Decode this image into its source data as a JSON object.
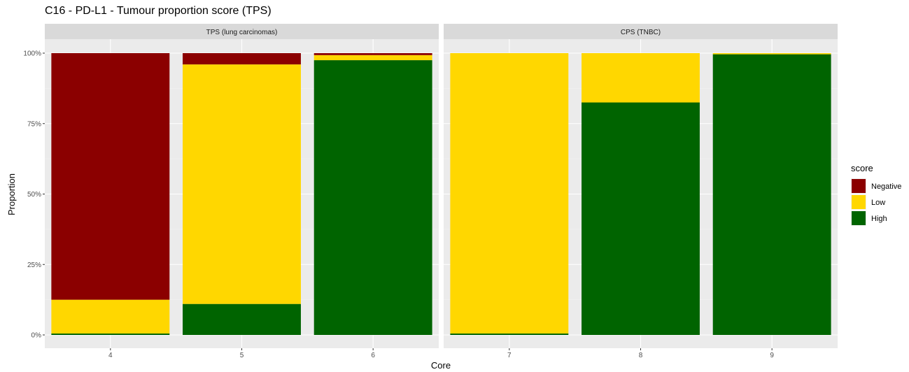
{
  "chart_data": {
    "type": "bar",
    "title": "C16 - PD-L1 - Tumour proportion score (TPS)",
    "xlabel": "Core",
    "ylabel": "Proportion",
    "ylim": [
      0,
      1
    ],
    "yticks": [
      0,
      0.25,
      0.5,
      0.75,
      1.0
    ],
    "ytick_labels": [
      "0%",
      "25%",
      "50%",
      "75%",
      "100%"
    ],
    "stacked": true,
    "grid": true,
    "legend": {
      "title": "score",
      "position": "right",
      "entries": [
        {
          "name": "Negative",
          "color": "#8B0000"
        },
        {
          "name": "Low",
          "color": "#FFD700"
        },
        {
          "name": "High",
          "color": "#006400"
        }
      ]
    },
    "panels": [
      {
        "strip": "TPS (lung carcinomas)",
        "categories": [
          "4",
          "5",
          "6"
        ],
        "series": [
          {
            "name": "High",
            "values": [
              0.005,
              0.11,
              0.975
            ]
          },
          {
            "name": "Low",
            "values": [
              0.12,
              0.85,
              0.018
            ]
          },
          {
            "name": "Negative",
            "values": [
              0.875,
              0.04,
              0.007
            ]
          }
        ]
      },
      {
        "strip": "CPS (TNBC)",
        "categories": [
          "7",
          "8",
          "9"
        ],
        "series": [
          {
            "name": "High",
            "values": [
              0.005,
              0.825,
              0.996
            ]
          },
          {
            "name": "Low",
            "values": [
              0.995,
              0.175,
              0.004
            ]
          },
          {
            "name": "Negative",
            "values": [
              0,
              0,
              0
            ]
          }
        ]
      }
    ]
  }
}
